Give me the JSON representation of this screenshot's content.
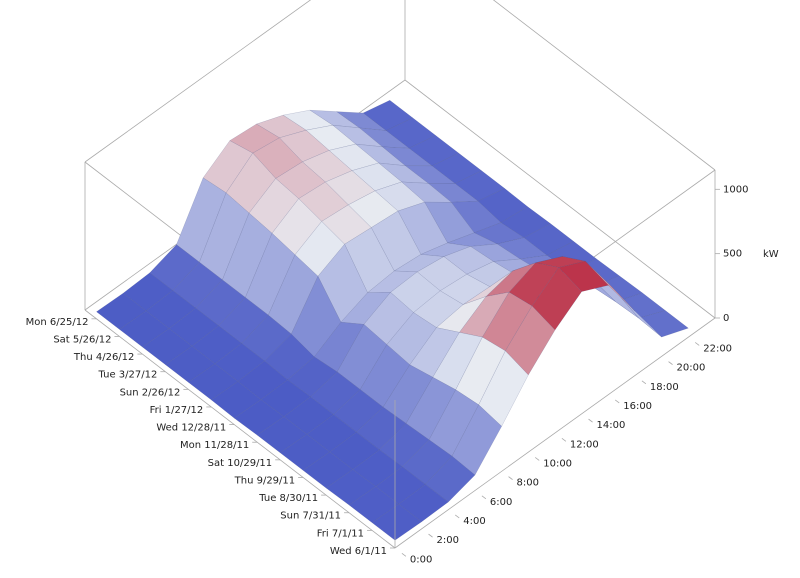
{
  "chart_data": {
    "type": "surface3d",
    "categories": [
      "Wed 6/1/11",
      "Fri 7/1/11",
      "Sun 7/31/11",
      "Tue 8/30/11",
      "Thu 9/29/11",
      "Sat 10/29/11",
      "Mon 11/28/11",
      "Wed 12/28/11",
      "Fri 1/27/12",
      "Sun 2/26/12",
      "Tue 3/27/12",
      "Thu 4/26/12",
      "Sat 5/26/12",
      "Mon 6/25/12"
    ],
    "hours": [
      0,
      2,
      4,
      6,
      8,
      10,
      12,
      14,
      16,
      18,
      20,
      22
    ],
    "xlim": [
      0,
      24
    ],
    "xticks": [
      {
        "value": 0,
        "label": "0:00"
      },
      {
        "value": 2,
        "label": "2:00"
      },
      {
        "value": 4,
        "label": "4:00"
      },
      {
        "value": 6,
        "label": "6:00"
      },
      {
        "value": 8,
        "label": "8:00"
      },
      {
        "value": 10,
        "label": "10:00"
      },
      {
        "value": 12,
        "label": "12:00"
      },
      {
        "value": 14,
        "label": "14:00"
      },
      {
        "value": 16,
        "label": "16:00"
      },
      {
        "value": 18,
        "label": "18:00"
      },
      {
        "value": 20,
        "label": "20:00"
      },
      {
        "value": 22,
        "label": "22:00"
      }
    ],
    "zlim": [
      0,
      1150
    ],
    "zticks": [
      0,
      500,
      1000
    ],
    "zlabel": "kW",
    "values": [
      [
        60,
        55,
        60,
        120,
        350,
        600,
        800,
        950,
        850,
        500,
        150,
        70
      ],
      [
        60,
        55,
        60,
        130,
        380,
        650,
        850,
        1000,
        900,
        550,
        160,
        70
      ],
      [
        60,
        55,
        60,
        120,
        360,
        620,
        820,
        900,
        800,
        500,
        150,
        70
      ],
      [
        55,
        50,
        55,
        110,
        320,
        520,
        650,
        700,
        600,
        400,
        130,
        65
      ],
      [
        55,
        50,
        55,
        100,
        280,
        420,
        450,
        440,
        380,
        250,
        110,
        60
      ],
      [
        55,
        50,
        55,
        100,
        300,
        400,
        420,
        400,
        350,
        220,
        100,
        60
      ],
      [
        55,
        50,
        55,
        100,
        320,
        420,
        430,
        400,
        330,
        200,
        100,
        60
      ],
      [
        50,
        45,
        50,
        80,
        200,
        280,
        300,
        280,
        220,
        150,
        80,
        55
      ],
      [
        55,
        50,
        60,
        120,
        420,
        520,
        500,
        480,
        400,
        250,
        110,
        60
      ],
      [
        55,
        50,
        60,
        130,
        450,
        560,
        540,
        500,
        420,
        260,
        110,
        60
      ],
      [
        55,
        50,
        60,
        130,
        480,
        600,
        580,
        520,
        430,
        260,
        110,
        60
      ],
      [
        55,
        50,
        60,
        130,
        500,
        620,
        600,
        540,
        440,
        270,
        110,
        60
      ],
      [
        55,
        50,
        60,
        130,
        520,
        680,
        650,
        560,
        450,
        280,
        110,
        60
      ],
      [
        55,
        50,
        60,
        130,
        500,
        640,
        620,
        540,
        430,
        270,
        110,
        60
      ]
    ]
  }
}
